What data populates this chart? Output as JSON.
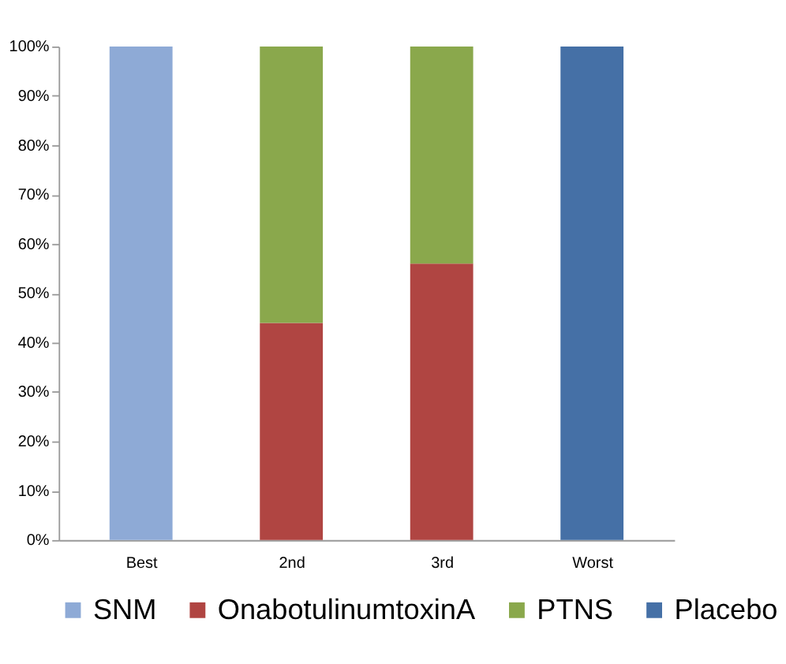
{
  "chart_data": {
    "type": "bar",
    "stacked": true,
    "categories": [
      "Best",
      "2nd",
      "3rd",
      "Worst"
    ],
    "series": [
      {
        "name": "SNM",
        "color": "#8eaad6",
        "values": [
          100,
          null,
          null,
          null
        ]
      },
      {
        "name": "OnabotulinumtoxinA",
        "color": "#b04542",
        "values": [
          null,
          44,
          56,
          null
        ]
      },
      {
        "name": "PTNS",
        "color": "#8aa84c",
        "values": [
          null,
          56,
          44,
          null
        ]
      },
      {
        "name": "Placebo",
        "color": "#4570a6",
        "values": [
          null,
          null,
          null,
          100
        ]
      }
    ],
    "ylim": [
      0,
      100
    ],
    "yticks": [
      {
        "value": 0,
        "label": "0%"
      },
      {
        "value": 10,
        "label": "10%"
      },
      {
        "value": 20,
        "label": "20%"
      },
      {
        "value": 30,
        "label": "30%"
      },
      {
        "value": 40,
        "label": "40%"
      },
      {
        "value": 50,
        "label": "50%"
      },
      {
        "value": 60,
        "label": "60%"
      },
      {
        "value": 70,
        "label": "70%"
      },
      {
        "value": 80,
        "label": "80%"
      },
      {
        "value": 90,
        "label": "90%"
      },
      {
        "value": 100,
        "label": "100%"
      }
    ],
    "grid": false,
    "legend": "bottom"
  }
}
